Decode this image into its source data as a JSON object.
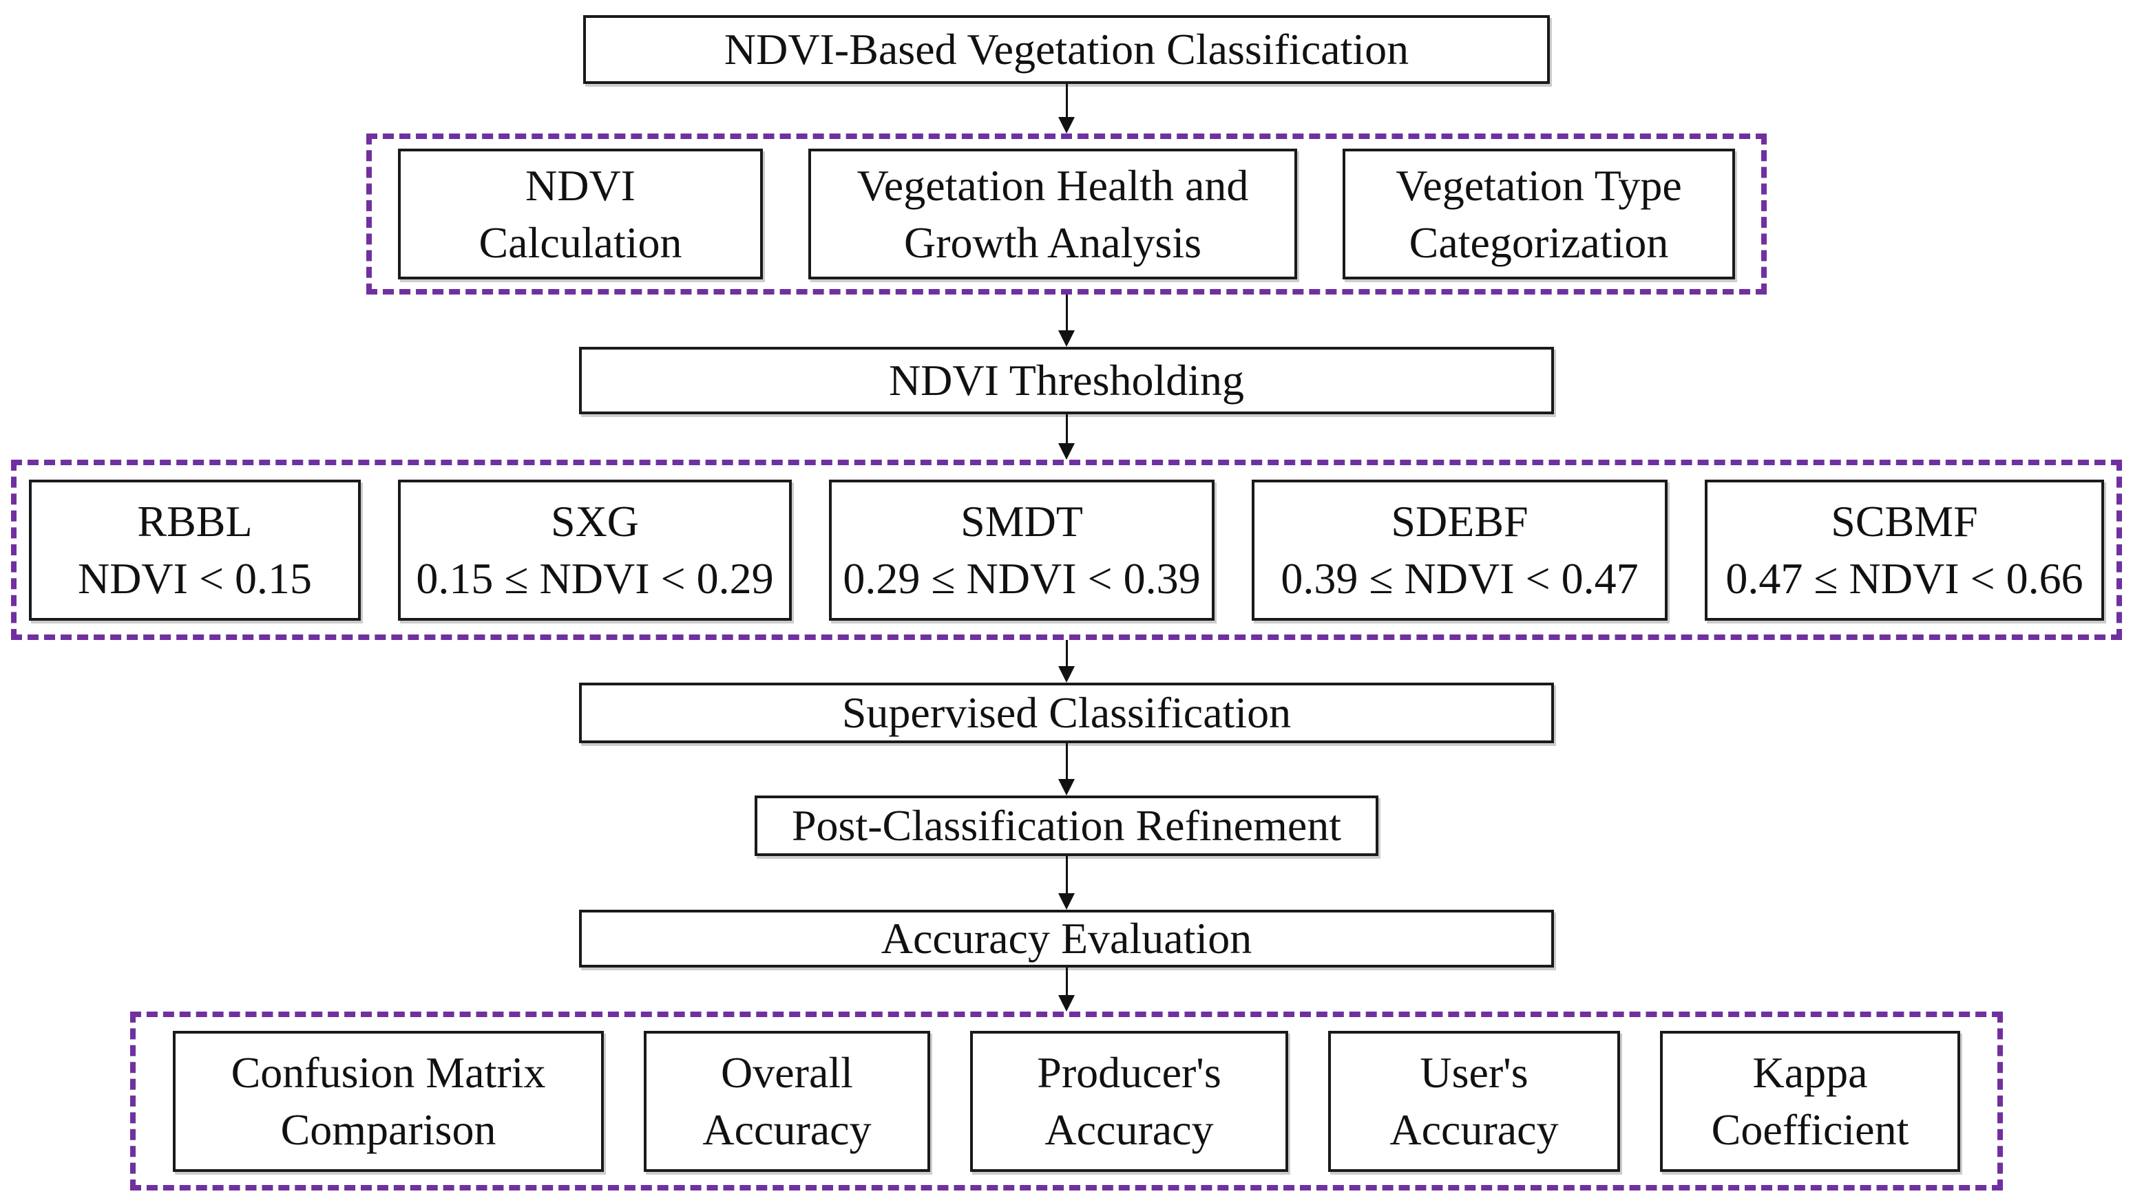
{
  "flow": {
    "title": "NDVI-Based Vegetation Classification",
    "analysis_steps": [
      {
        "label": "NDVI\nCalculation"
      },
      {
        "label": "Vegetation Health and\nGrowth Analysis"
      },
      {
        "label": "Vegetation Type\nCategorization"
      }
    ],
    "thresholding_label": "NDVI Thresholding",
    "vegetation_classes": [
      {
        "code": "RBBL",
        "range": "NDVI < 0.15"
      },
      {
        "code": "SXG",
        "range": "0.15 ≤ NDVI < 0.29"
      },
      {
        "code": "SMDT",
        "range": "0.29 ≤ NDVI < 0.39"
      },
      {
        "code": "SDEBF",
        "range": "0.39 ≤ NDVI < 0.47"
      },
      {
        "code": "SCBMF",
        "range": "0.47 ≤ NDVI < 0.66"
      }
    ],
    "supervised_label": "Supervised Classification",
    "refinement_label": "Post-Classification Refinement",
    "evaluation_label": "Accuracy Evaluation",
    "metrics": [
      {
        "label": "Confusion Matrix\nComparison"
      },
      {
        "label": "Overall\nAccuracy"
      },
      {
        "label": "Producer's\nAccuracy"
      },
      {
        "label": "User's\nAccuracy"
      },
      {
        "label": "Kappa\nCoefficient"
      }
    ]
  },
  "colors": {
    "background": "#FFFFFF",
    "box_border": "#1A1A1A",
    "dashed_group_border": "#7030A0",
    "arrow": "#111111",
    "text": "#111111"
  }
}
